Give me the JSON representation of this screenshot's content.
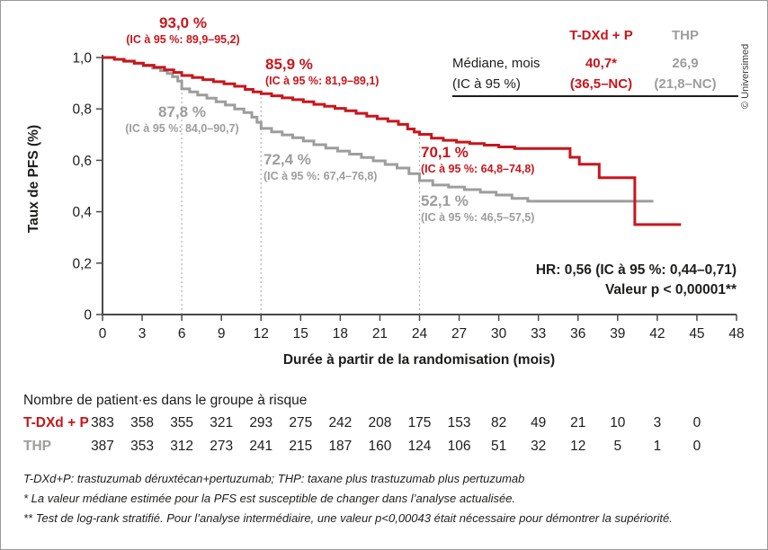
{
  "watermark": "© Universimed",
  "chart_data": {
    "type": "line",
    "subtype": "kaplan-meier-step",
    "title": "",
    "xlabel": "Durée à partir de la randomisation (mois)",
    "ylabel": "Taux de PFS (%)",
    "xlim": [
      0,
      48
    ],
    "ylim": [
      0,
      1.0
    ],
    "grid": false,
    "x_ticks": [
      0,
      3,
      6,
      9,
      12,
      15,
      18,
      21,
      24,
      27,
      30,
      33,
      36,
      39,
      42,
      45,
      48
    ],
    "y_ticks": [
      {
        "label": "1,0",
        "value": 1.0
      },
      {
        "label": "0,8",
        "value": 0.8
      },
      {
        "label": "0,6",
        "value": 0.6
      },
      {
        "label": "0,4",
        "value": 0.4
      },
      {
        "label": "0,2",
        "value": 0.2
      },
      {
        "label": "0",
        "value": 0.0
      }
    ],
    "milestones": [
      {
        "month": 6,
        "top_value": 0.93
      },
      {
        "month": 12,
        "top_value": 0.859
      },
      {
        "month": 24,
        "top_value": 0.701
      }
    ],
    "series": [
      {
        "name": "T-DXd + P",
        "color": "#c8161c",
        "step_points": [
          [
            0,
            1.0
          ],
          [
            0.9,
            0.993
          ],
          [
            1.6,
            0.986
          ],
          [
            2.4,
            0.978
          ],
          [
            3.1,
            0.97
          ],
          [
            3.9,
            0.962
          ],
          [
            4.7,
            0.952
          ],
          [
            5.4,
            0.942
          ],
          [
            6,
            0.93
          ],
          [
            6.8,
            0.922
          ],
          [
            7.6,
            0.914
          ],
          [
            8.4,
            0.906
          ],
          [
            9.2,
            0.898
          ],
          [
            10,
            0.888
          ],
          [
            10.8,
            0.876
          ],
          [
            11.4,
            0.866
          ],
          [
            12,
            0.859
          ],
          [
            12.8,
            0.851
          ],
          [
            13.6,
            0.843
          ],
          [
            14.4,
            0.836
          ],
          [
            15.2,
            0.828
          ],
          [
            16,
            0.818
          ],
          [
            16.8,
            0.81
          ],
          [
            17.6,
            0.802
          ],
          [
            18.4,
            0.793
          ],
          [
            19.2,
            0.783
          ],
          [
            20,
            0.772
          ],
          [
            20.8,
            0.762
          ],
          [
            21.6,
            0.752
          ],
          [
            22.4,
            0.74
          ],
          [
            23.1,
            0.722
          ],
          [
            23.6,
            0.71
          ],
          [
            24,
            0.701
          ],
          [
            24.9,
            0.686
          ],
          [
            25.8,
            0.678
          ],
          [
            26.8,
            0.671
          ],
          [
            27.8,
            0.665
          ],
          [
            28.9,
            0.659
          ],
          [
            30,
            0.652
          ],
          [
            31.2,
            0.646
          ],
          [
            35.4,
            0.612
          ],
          [
            36.1,
            0.585
          ],
          [
            37.6,
            0.532
          ],
          [
            40.3,
            0.35
          ],
          [
            43.8,
            0.35
          ]
        ]
      },
      {
        "name": "THP",
        "color": "#9d9d9c",
        "step_points": [
          [
            0,
            1.0
          ],
          [
            0.9,
            0.993
          ],
          [
            1.7,
            0.985
          ],
          [
            2.4,
            0.977
          ],
          [
            3.1,
            0.968
          ],
          [
            3.8,
            0.959
          ],
          [
            4.4,
            0.949
          ],
          [
            4.9,
            0.938
          ],
          [
            5.3,
            0.925
          ],
          [
            5.7,
            0.908
          ],
          [
            6,
            0.878
          ],
          [
            6.6,
            0.866
          ],
          [
            7.2,
            0.854
          ],
          [
            7.9,
            0.842
          ],
          [
            8.6,
            0.828
          ],
          [
            9.3,
            0.815
          ],
          [
            10,
            0.8
          ],
          [
            10.7,
            0.786
          ],
          [
            11.3,
            0.768
          ],
          [
            11.7,
            0.748
          ],
          [
            12,
            0.724
          ],
          [
            12.8,
            0.711
          ],
          [
            13.6,
            0.699
          ],
          [
            14.4,
            0.688
          ],
          [
            15.2,
            0.675
          ],
          [
            16,
            0.661
          ],
          [
            16.9,
            0.648
          ],
          [
            17.8,
            0.636
          ],
          [
            18.7,
            0.624
          ],
          [
            19.6,
            0.611
          ],
          [
            20.5,
            0.598
          ],
          [
            21.4,
            0.584
          ],
          [
            22.3,
            0.57
          ],
          [
            23.2,
            0.548
          ],
          [
            24,
            0.521
          ],
          [
            25,
            0.504
          ],
          [
            26.2,
            0.496
          ],
          [
            27.4,
            0.486
          ],
          [
            28.6,
            0.476
          ],
          [
            29.8,
            0.465
          ],
          [
            31,
            0.452
          ],
          [
            32.2,
            0.441
          ],
          [
            41.7,
            0.441
          ]
        ]
      }
    ]
  },
  "annotations": {
    "red_m6": {
      "title": "93,0 %",
      "ci": "(IC à 95 %: 89,9–95,2)"
    },
    "red_m12": {
      "title": "85,9 %",
      "ci": "(IC à 95 %: 81,9–89,1)"
    },
    "red_m24": {
      "title": "70,1 %",
      "ci": "(IC à 95 %: 64,8–74,8)"
    },
    "gray_m6": {
      "title": "87,8 %",
      "ci": "(IC à 95 %: 84,0–90,7)"
    },
    "gray_m12": {
      "title": "72,4 %",
      "ci": "(IC à 95 %: 67,4–76,8)"
    },
    "gray_m24": {
      "title": "52,1 %",
      "ci": "(IC à 95 %: 46,5–57,5)"
    }
  },
  "median_table": {
    "row_label_line1": "Médiane, mois",
    "row_label_line2": "(IC à 95 %)",
    "columns": [
      {
        "name": "T-DXd + P",
        "median": "40,7*",
        "ci": "(36,5–NC)"
      },
      {
        "name": "THP",
        "median": "26,9",
        "ci": "(21,8–NC)"
      }
    ]
  },
  "stats": {
    "hr": "HR: 0,56 (IC à 95 %: 0,44–0,71)",
    "p_value": "Valeur p < 0,00001**"
  },
  "at_risk": {
    "header": "Nombre de patient·es dans le groupe à risque",
    "months": [
      0,
      3,
      6,
      9,
      12,
      15,
      18,
      21,
      24,
      27,
      30,
      33,
      36,
      39,
      42,
      45
    ],
    "rows": [
      {
        "label": "T-DXd + P",
        "color": "#c8161c",
        "values": [
          383,
          358,
          355,
          321,
          293,
          275,
          242,
          208,
          175,
          153,
          82,
          49,
          21,
          10,
          3,
          0
        ]
      },
      {
        "label": "THP",
        "color": "#9d9d9c",
        "values": [
          387,
          353,
          312,
          273,
          241,
          215,
          187,
          160,
          124,
          106,
          51,
          32,
          12,
          5,
          1,
          0
        ]
      }
    ]
  },
  "footnotes": [
    "T-DXd+P: trastuzumab déruxtécan+pertuzumab; THP: taxane plus trastuzumab plus pertuzumab",
    "* La valeur médiane estimée pour la PFS est susceptible de changer dans l’analyse actualisée.",
    "** Test de log-rank stratifié. Pour l’analyse intermédiaire, une valeur p<0,00043 était nécessaire pour démontrer la supériorité."
  ]
}
